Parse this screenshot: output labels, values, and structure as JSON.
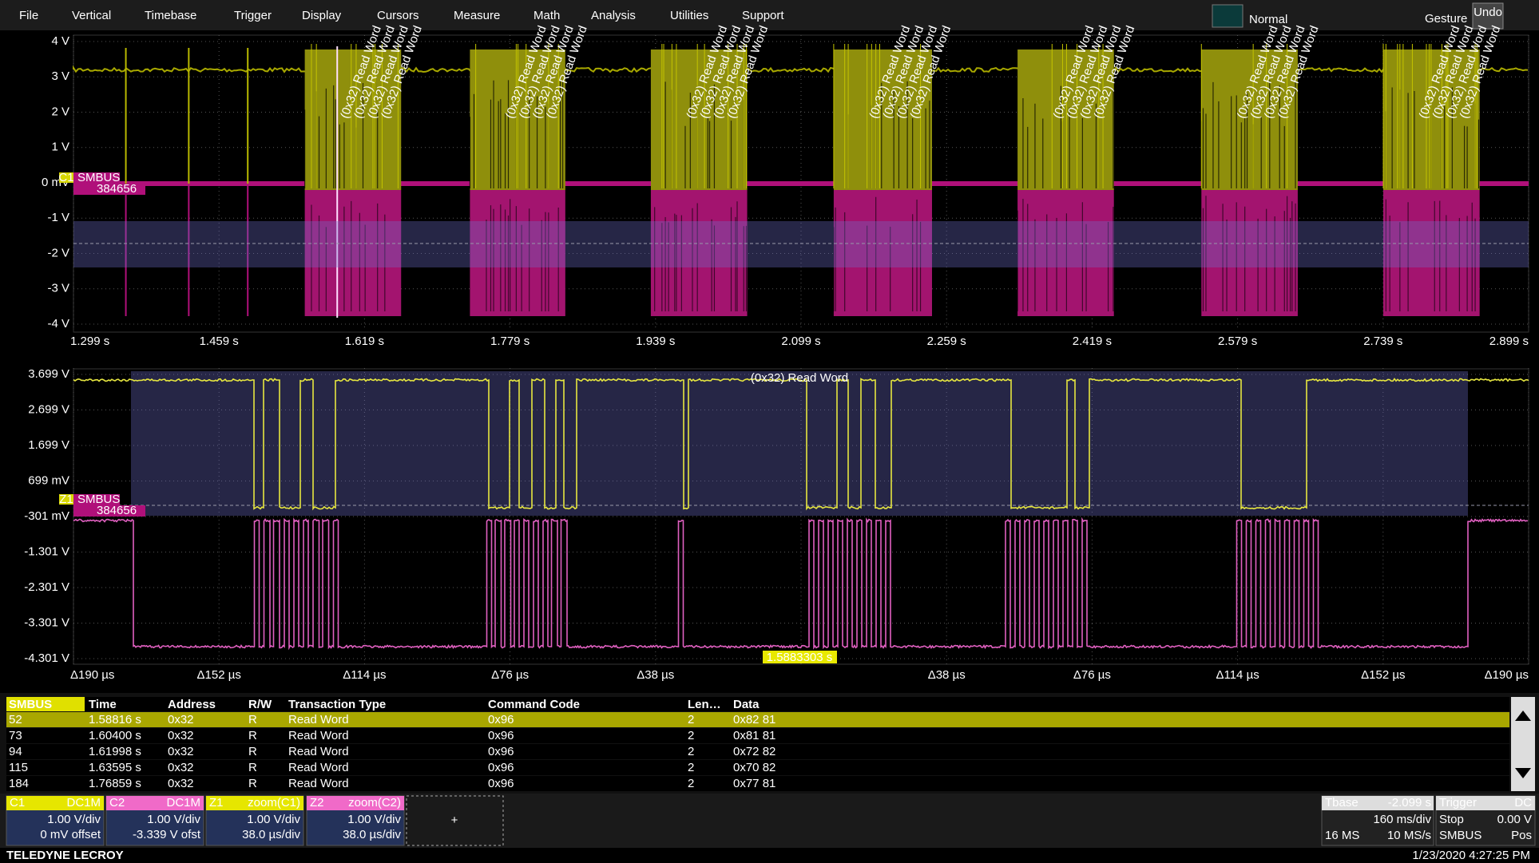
{
  "menu": [
    "File",
    "Vertical",
    "Timebase",
    "Trigger",
    "Display",
    "Cursors",
    "Measure",
    "Math",
    "Analysis",
    "Utilities",
    "Support"
  ],
  "top_right": {
    "mode": "Normal",
    "gesture": "Gesture",
    "undo": "Undo"
  },
  "top_plot": {
    "y_labels": [
      "4 V",
      "3 V",
      "2 V",
      "1 V",
      "0 mV",
      "-1 V",
      "-2 V",
      "-3 V",
      "-4 V"
    ],
    "x_labels": [
      "1.299 s",
      "1.459 s",
      "1.619 s",
      "1.779 s",
      "1.939 s",
      "2.099 s",
      "2.259 s",
      "2.419 s",
      "2.579 s",
      "2.739 s",
      "2.899 s"
    ],
    "channel_marker": "C1",
    "trace_label": "SMBUS",
    "trace_value": "384656",
    "decode_label": "(0x32) Read Word"
  },
  "bottom_plot": {
    "y_labels": [
      "3.699 V",
      "2.699 V",
      "1.699 V",
      "699 mV",
      "-301 mV",
      "-1.301 V",
      "-2.301 V",
      "-3.301 V",
      "-4.301 V"
    ],
    "x_labels": [
      "Δ190 µs",
      "Δ152 µs",
      "Δ114 µs",
      "Δ76 µs",
      "Δ38 µs",
      null,
      "Δ38 µs",
      "Δ76 µs",
      "Δ114 µs",
      "Δ152 µs",
      "Δ190 µs"
    ],
    "channel_marker": "Z1",
    "trace_label": "SMBUS",
    "trace_value": "384656",
    "decode_label": "(0x32) Read Word",
    "cursor_time": "1.5883303 s"
  },
  "table": {
    "columns": [
      "SMBUS",
      "Time",
      "Address",
      "R/W",
      "Transaction Type",
      "Command Code",
      "Len…",
      "Data"
    ],
    "rows": [
      [
        "52",
        "1.58816 s",
        "0x32",
        "R",
        "Read Word",
        "0x96",
        "2",
        "0x82 81"
      ],
      [
        "73",
        "1.60400 s",
        "0x32",
        "R",
        "Read Word",
        "0x96",
        "2",
        "0x81 81"
      ],
      [
        "94",
        "1.61998 s",
        "0x32",
        "R",
        "Read Word",
        "0x96",
        "2",
        "0x72 82"
      ],
      [
        "115",
        "1.63595 s",
        "0x32",
        "R",
        "Read Word",
        "0x96",
        "2",
        "0x70 82"
      ],
      [
        "184",
        "1.76859 s",
        "0x32",
        "R",
        "Read Word",
        "0x96",
        "2",
        "0x77 81"
      ]
    ]
  },
  "channels": [
    {
      "name": "C1",
      "coupling": "DC1M",
      "lines": [
        "1.00 V/div",
        "0 mV offset"
      ]
    },
    {
      "name": "C2",
      "coupling": "DC1M",
      "lines": [
        "1.00 V/div",
        "-3.339 V ofst"
      ]
    },
    {
      "name": "Z1",
      "coupling": "zoom(C1)",
      "lines": [
        "1.00 V/div",
        "38.0 µs/div"
      ]
    },
    {
      "name": "Z2",
      "coupling": "zoom(C2)",
      "lines": [
        "1.00 V/div",
        "38.0 µs/div"
      ]
    }
  ],
  "add_button": "+",
  "timebase": {
    "title": "Tbase",
    "offset": "-2.099 s",
    "scale": "160 ms/div",
    "samples": "16 MS",
    "rate": "10 MS/s"
  },
  "trigger": {
    "title": "Trigger",
    "coupling": "DC",
    "mode": "Stop",
    "level": "0.00 V",
    "source": "SMBUS",
    "slope": "Pos"
  },
  "footer": {
    "brand": "TELEDYNE LECROY",
    "timestamp": "1/23/2020 4:27:25 PM"
  }
}
